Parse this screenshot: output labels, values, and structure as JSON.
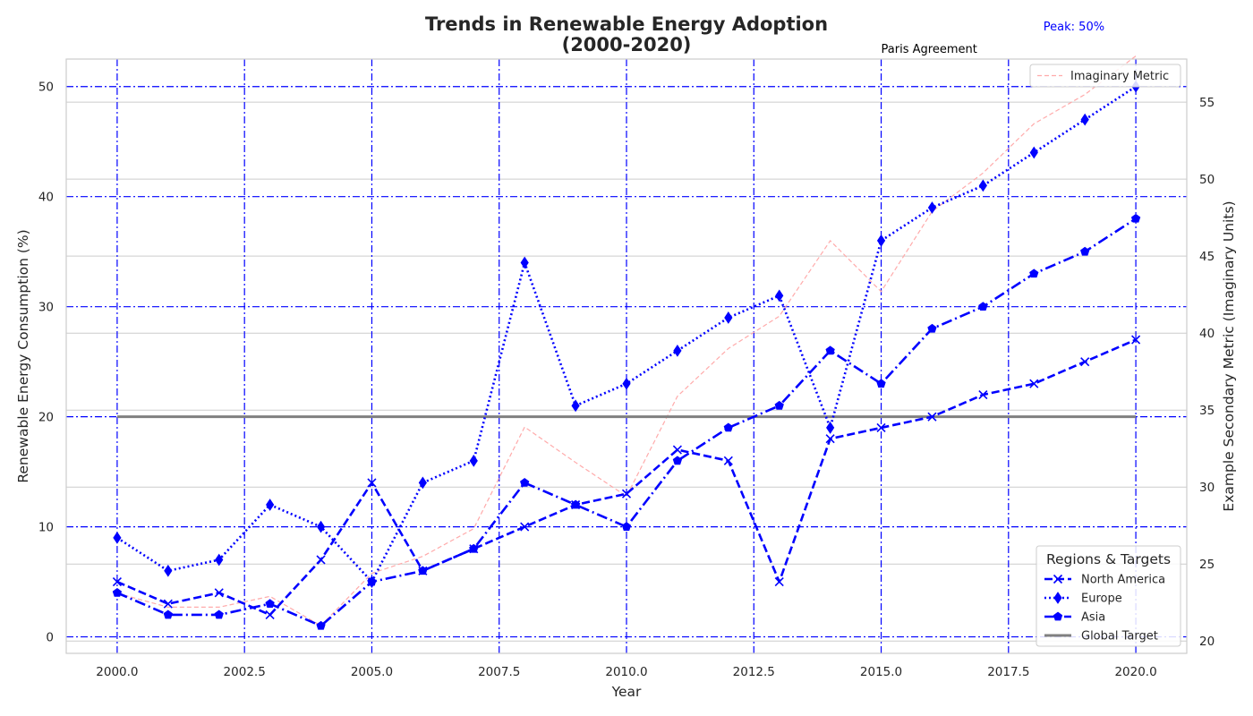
{
  "chart_data": {
    "type": "line",
    "title_line1": "Trends in Renewable Energy Adoption",
    "title_line2": "(2000-2020)",
    "xlabel": "Year",
    "ylabel": "Renewable Energy Consumption (%)",
    "y2label": "Example Secondary Metric (Imaginary Units)",
    "xlim": [
      1999,
      2021
    ],
    "ylim": [
      -1.5,
      52.5
    ],
    "y2lim": [
      19.2,
      57.8
    ],
    "x_ticks": [
      2000,
      2002.5,
      2005,
      2007.5,
      2010,
      2012.5,
      2015,
      2017.5,
      2020
    ],
    "x_tick_labels": [
      "2000.0",
      "2002.5",
      "2005.0",
      "2007.5",
      "2010.0",
      "2012.5",
      "2015.0",
      "2017.5",
      "2020.0"
    ],
    "y_ticks": [
      0,
      10,
      20,
      30,
      40,
      50
    ],
    "y_tick_labels": [
      "0",
      "10",
      "20",
      "30",
      "40",
      "50"
    ],
    "y2_ticks": [
      20,
      25,
      30,
      35,
      40,
      45,
      50,
      55
    ],
    "y2_tick_labels": [
      "20",
      "25",
      "30",
      "35",
      "40",
      "45",
      "50",
      "55"
    ],
    "x": [
      2000,
      2001,
      2002,
      2003,
      2004,
      2005,
      2006,
      2007,
      2008,
      2009,
      2010,
      2011,
      2012,
      2013,
      2014,
      2015,
      2016,
      2017,
      2018,
      2019,
      2020
    ],
    "series": [
      {
        "name": "North America",
        "color": "#0000ff",
        "dash": "9,4",
        "marker": "x",
        "values": [
          5,
          3,
          4,
          2,
          7,
          14,
          6,
          8,
          10,
          12,
          13,
          17,
          16,
          5,
          18,
          19,
          20,
          22,
          23,
          25,
          27
        ]
      },
      {
        "name": "Europe",
        "color": "#0000ff",
        "dash": "2,3",
        "marker": "thin_diamond",
        "values": [
          9,
          6,
          7,
          12,
          10,
          5,
          14,
          16,
          34,
          21,
          23,
          26,
          29,
          31,
          19,
          36,
          39,
          41,
          44,
          47,
          50
        ]
      },
      {
        "name": "Asia",
        "color": "#0000ff",
        "dash": "12,4,2,4",
        "marker": "pentagon",
        "values": [
          4,
          2,
          2,
          3,
          1,
          5,
          6,
          8,
          14,
          12,
          10,
          16,
          19,
          21,
          26,
          23,
          28,
          30,
          33,
          35,
          38
        ]
      }
    ],
    "global_target": {
      "name": "Global Target",
      "value": 20,
      "color": "#808080"
    },
    "secondary_series": {
      "name": "Imaginary Metric",
      "color": "#ffaaaa",
      "values": [
        23.1,
        22.2,
        22.2,
        22.9,
        21.0,
        24.4,
        25.5,
        27.3,
        33.9,
        31.6,
        29.4,
        35.9,
        39.0,
        41.1,
        46.0,
        42.7,
        47.9,
        50.4,
        53.6,
        55.5,
        58.0
      ]
    },
    "annotations": [
      {
        "text": "Paris Agreement",
        "x": 2015,
        "color": "#000000"
      },
      {
        "text": "Peak: 50%",
        "x": 2020,
        "y": 50,
        "color": "#0000ff"
      }
    ],
    "legend_title": "Regions & Targets",
    "legend_position": "lower right",
    "secondary_legend_position": "upper right",
    "grid": true,
    "grid_color": "#0000ff"
  }
}
